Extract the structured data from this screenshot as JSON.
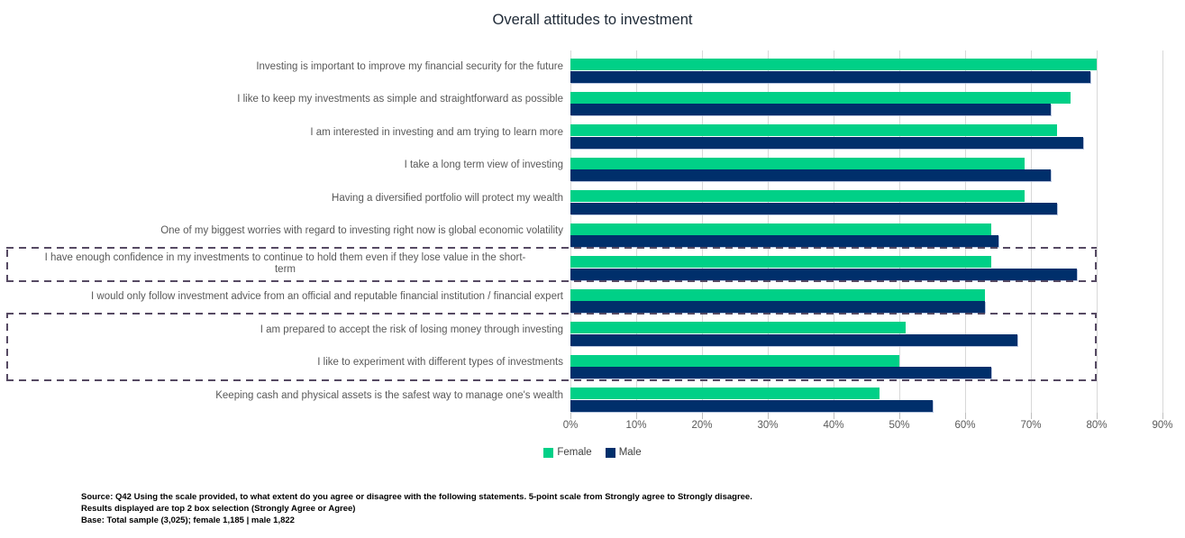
{
  "title": "Overall attitudes to investment",
  "chart_data": {
    "type": "bar",
    "orientation": "horizontal",
    "title": "Overall attitudes to investment",
    "categories": [
      "Investing is important to improve my financial security for the future",
      "I like to keep my investments as simple and straightforward as possible",
      "I am interested in investing and am trying to learn more",
      "I take a long term view of investing",
      "Having a diversified portfolio will protect my wealth",
      "One of my biggest worries with regard to investing right now is global economic volatility",
      "I have enough confidence in my investments to continue to hold them even if they lose value in the short-\nterm",
      "I would only follow investment advice from an official and reputable financial institution / financial expert",
      "I am prepared to accept the risk of losing money through investing",
      "I like to experiment with different types of investments",
      "Keeping cash and physical assets is the safest way to manage one's wealth"
    ],
    "series": [
      {
        "name": "Female",
        "color": "#00d087",
        "values": [
          80,
          76,
          74,
          69,
          69,
          64,
          64,
          63,
          51,
          50,
          47
        ]
      },
      {
        "name": "Male",
        "color": "#002f6b",
        "values": [
          79,
          73,
          78,
          73,
          74,
          65,
          77,
          63,
          68,
          64,
          55
        ]
      }
    ],
    "xlim": [
      0,
      90
    ],
    "x_tick_labels": [
      "0%",
      "10%",
      "20%",
      "30%",
      "40%",
      "50%",
      "60%",
      "70%",
      "80%",
      "90%"
    ],
    "grid": "vertical",
    "legend_position": "bottom",
    "highlight_boxes": [
      {
        "start_row": 7,
        "end_row": 7
      },
      {
        "start_row": 9,
        "end_row": 10
      }
    ],
    "highlight_color": "#564a63",
    "gridline_color": "#d8d8d8"
  },
  "footnotes": [
    "Source: Q42 Using the scale provided, to what extent do you agree or disagree with the following statements. 5-point scale from Strongly agree to Strongly disagree.",
    "Results displayed are top 2 box selection (Strongly Agree or Agree)",
    "Base: Total sample (3,025); female 1,185  |  male 1,822"
  ]
}
